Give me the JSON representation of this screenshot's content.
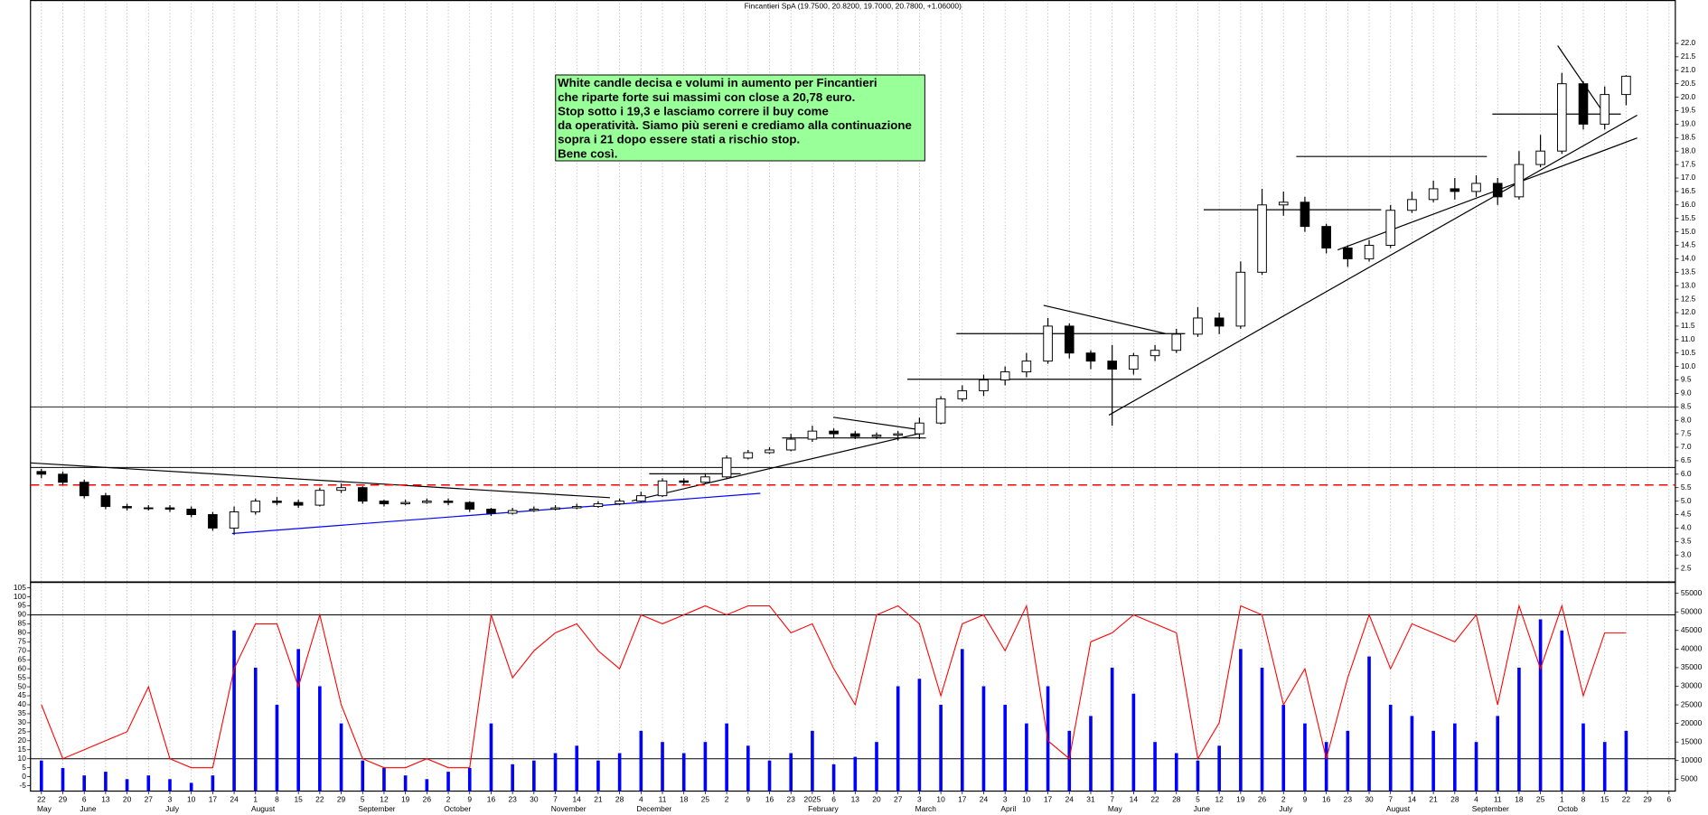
{
  "chart_data": {
    "type": "candlestick",
    "title": "Fincantieri SpA (19.7500, 20.8200, 19.7000, 20.7800, +1.06000)",
    "annotation": [
      "White candle decisa e volumi in aumento per Fincantieri",
      "che riparte forte sui massimi con close a 20,78 euro.",
      "Stop sotto i 19,3 e lasciamo correre il buy come",
      "da operatività.  Siamo più sereni e crediamo alla continuazione",
      "sopra i 21  dopo essere stati a rischio stop.",
      "Bene così."
    ],
    "annotation_color": "#99ff99",
    "categories": [
      "22",
      "29",
      "6",
      "13",
      "20",
      "27",
      "3",
      "10",
      "17",
      "24",
      "1",
      "8",
      "15",
      "22",
      "29",
      "5",
      "12",
      "19",
      "26",
      "2",
      "9",
      "16",
      "23",
      "30",
      "7",
      "14",
      "21",
      "28",
      "4",
      "11",
      "18",
      "25",
      "2",
      "9",
      "16",
      "23",
      "2025",
      "6",
      "13",
      "20",
      "27",
      "3",
      "10",
      "17",
      "24",
      "3",
      "10",
      "17",
      "24",
      "31",
      "7",
      "14",
      "22",
      "28",
      "5",
      "12",
      "19",
      "26",
      "2",
      "9",
      "16",
      "23",
      "30",
      "7",
      "14",
      "21",
      "28",
      "4",
      "11",
      "18",
      "25",
      "1",
      "8",
      "15",
      "22",
      "29",
      "6"
    ],
    "month_labels": [
      "May",
      "June",
      "July",
      "August",
      "September",
      "October",
      "November",
      "December",
      null,
      "February",
      "March",
      "April",
      "May",
      "June",
      "July",
      "August",
      "September",
      "Octob"
    ],
    "open": [
      6.1,
      6.0,
      5.7,
      5.2,
      4.8,
      4.75,
      4.75,
      4.7,
      4.5,
      4.0,
      4.6,
      5.0,
      4.95,
      4.85,
      5.4,
      5.5,
      5.0,
      4.9,
      4.95,
      5.0,
      4.95,
      4.7,
      4.55,
      4.65,
      4.7,
      4.75,
      4.8,
      4.9,
      5.0,
      5.2,
      5.75,
      5.7,
      5.9,
      6.6,
      6.8,
      6.9,
      7.3,
      7.6,
      7.5,
      7.4,
      7.45,
      7.5,
      7.9,
      8.8,
      9.1,
      9.5,
      9.8,
      10.2,
      11.5,
      10.5,
      10.2,
      9.9,
      10.4,
      10.6,
      11.2,
      11.8,
      11.5,
      13.5,
      16.0,
      16.1,
      15.2,
      14.4,
      14.0,
      14.5,
      15.8,
      16.2,
      16.6,
      16.5,
      16.8,
      16.3,
      17.5,
      18.0,
      20.5,
      19.0,
      20.1,
      null,
      null
    ],
    "high": [
      6.2,
      6.1,
      5.8,
      5.3,
      4.9,
      4.85,
      4.85,
      4.8,
      4.6,
      4.8,
      5.1,
      5.15,
      5.05,
      5.5,
      5.65,
      5.55,
      5.05,
      5.05,
      5.1,
      5.1,
      5.0,
      4.75,
      4.75,
      4.8,
      4.85,
      4.9,
      5.0,
      5.1,
      5.35,
      5.85,
      5.85,
      6.0,
      6.7,
      6.9,
      7.0,
      7.5,
      7.8,
      7.7,
      7.6,
      7.55,
      7.6,
      8.1,
      8.9,
      9.3,
      9.7,
      10.0,
      10.5,
      11.8,
      11.6,
      10.6,
      10.8,
      10.5,
      10.8,
      11.4,
      12.2,
      12.0,
      13.9,
      16.6,
      16.5,
      16.3,
      15.3,
      14.5,
      14.7,
      16.0,
      16.5,
      16.9,
      17.0,
      17.1,
      17.0,
      18.0,
      18.6,
      20.9,
      20.6,
      20.4,
      20.82,
      null,
      null
    ],
    "low": [
      5.85,
      5.6,
      5.1,
      4.7,
      4.65,
      4.65,
      4.6,
      4.4,
      3.9,
      3.75,
      4.5,
      4.85,
      4.75,
      4.8,
      5.3,
      4.9,
      4.8,
      4.85,
      4.9,
      4.85,
      4.6,
      4.45,
      4.5,
      4.6,
      4.65,
      4.7,
      4.75,
      4.85,
      4.95,
      5.15,
      5.6,
      5.65,
      5.85,
      6.55,
      6.75,
      6.85,
      7.2,
      7.35,
      7.3,
      7.3,
      7.25,
      7.3,
      7.85,
      8.7,
      8.9,
      9.3,
      9.6,
      10.1,
      10.3,
      9.9,
      7.8,
      9.7,
      10.2,
      10.5,
      11.1,
      11.2,
      11.4,
      13.4,
      15.6,
      15.0,
      14.2,
      13.7,
      13.9,
      14.4,
      15.7,
      16.1,
      16.2,
      16.3,
      16.0,
      16.2,
      17.4,
      17.9,
      18.8,
      18.8,
      19.7,
      null,
      null
    ],
    "close": [
      6.0,
      5.7,
      5.2,
      4.8,
      4.75,
      4.75,
      4.7,
      4.5,
      4.0,
      4.6,
      5.0,
      4.95,
      4.85,
      5.4,
      5.5,
      5.0,
      4.9,
      4.95,
      5.0,
      4.95,
      4.7,
      4.55,
      4.65,
      4.7,
      4.75,
      4.8,
      4.9,
      5.0,
      5.2,
      5.75,
      5.7,
      5.9,
      6.6,
      6.8,
      6.9,
      7.3,
      7.6,
      7.5,
      7.4,
      7.45,
      7.5,
      7.9,
      8.8,
      9.1,
      9.5,
      9.8,
      10.2,
      11.5,
      10.5,
      10.2,
      9.9,
      10.4,
      10.6,
      11.2,
      11.8,
      11.5,
      13.5,
      16.0,
      16.1,
      15.2,
      14.4,
      14.0,
      14.5,
      15.8,
      16.2,
      16.6,
      16.5,
      16.8,
      16.3,
      17.5,
      18.0,
      20.5,
      19.0,
      20.1,
      20.78,
      null,
      null
    ],
    "ylim": [
      2.02,
      23.61
    ],
    "yticks": [
      2.5,
      {
        "value": 3,
        "label": "3.0"
      },
      3.5,
      {
        "value": 4,
        "label": "4.0"
      },
      4.5,
      {
        "value": 5,
        "label": "5.0"
      },
      5.5,
      {
        "value": 6,
        "label": "6.0"
      },
      6.5,
      {
        "value": 7,
        "label": "7.0"
      },
      7.5,
      {
        "value": 8,
        "label": "8.0"
      },
      8.5,
      {
        "value": 9,
        "label": "9.0"
      },
      9.5,
      {
        "value": 10,
        "label": "10.0"
      },
      10.5,
      {
        "value": 11,
        "label": "11.0"
      },
      11.5,
      {
        "value": 12,
        "label": "12.0"
      },
      12.5,
      {
        "value": 13,
        "label": "13.0"
      },
      13.5,
      {
        "value": 14,
        "label": "14.0"
      },
      14.5,
      {
        "value": 15,
        "label": "15.0"
      },
      15.5,
      {
        "value": 16,
        "label": "16.0"
      },
      16.5,
      {
        "value": 17,
        "label": "17.0"
      },
      17.5,
      {
        "value": 18,
        "label": "18.0"
      },
      18.5,
      {
        "value": 19,
        "label": "19.0"
      },
      19.5,
      {
        "value": 20,
        "label": "20.0"
      },
      20.5,
      {
        "value": 21,
        "label": "21.0"
      },
      21.5,
      {
        "value": 22,
        "label": "22.0"
      }
    ],
    "hlines": [
      {
        "value": 8.5,
        "color": "#000000",
        "dashed": false
      },
      {
        "value": 6.25,
        "color": "#000000",
        "dashed": false
      },
      {
        "value": 5.6,
        "color": "#ff0000",
        "dashed": true
      }
    ],
    "grid": true,
    "oscillator": {
      "color": "#ff0000",
      "values": [
        40,
        10,
        15,
        20,
        25,
        50,
        10,
        5,
        5,
        60,
        85,
        85,
        50,
        90,
        40,
        10,
        5,
        5,
        10,
        5,
        5,
        90,
        55,
        70,
        80,
        85,
        70,
        60,
        90,
        85,
        90,
        95,
        90,
        95,
        95,
        80,
        85,
        60,
        40,
        90,
        95,
        85,
        45,
        85,
        90,
        70,
        95,
        20,
        10,
        75,
        80,
        90,
        85,
        80,
        10,
        30,
        95,
        90,
        40,
        60,
        10,
        55,
        90,
        60,
        85,
        80,
        75,
        90,
        40,
        95,
        60,
        95,
        45,
        80,
        80,
        null,
        null
      ],
      "ylim": [
        -8,
        108
      ],
      "yticks": [
        -5,
        0,
        5,
        10,
        15,
        20,
        25,
        30,
        35,
        40,
        45,
        50,
        55,
        60,
        65,
        70,
        75,
        80,
        85,
        90,
        95,
        100,
        105
      ],
      "hlines": [
        90,
        10
      ]
    },
    "volume": {
      "color": "#0000ff",
      "values": [
        10000,
        8000,
        6000,
        7000,
        5000,
        6000,
        5000,
        4000,
        6000,
        45000,
        35000,
        25000,
        40000,
        30000,
        20000,
        10000,
        8000,
        6000,
        5000,
        7000,
        8000,
        20000,
        9000,
        10000,
        12000,
        14000,
        10000,
        12000,
        18000,
        15000,
        12000,
        15000,
        20000,
        14000,
        10000,
        12000,
        18000,
        9000,
        11000,
        15000,
        30000,
        32000,
        25000,
        40000,
        30000,
        25000,
        20000,
        30000,
        18000,
        22000,
        35000,
        28000,
        15000,
        12000,
        10000,
        14000,
        40000,
        35000,
        25000,
        20000,
        15000,
        18000,
        38000,
        25000,
        22000,
        18000,
        20000,
        15000,
        22000,
        35000,
        48000,
        45000,
        20000,
        15000,
        18000,
        null,
        null
      ],
      "y2lim": [
        1784,
        57924
      ],
      "y2ticks": [
        5000,
        10000,
        15000,
        20000,
        25000,
        30000,
        35000,
        40000,
        45000,
        50000,
        55000
      ]
    }
  }
}
